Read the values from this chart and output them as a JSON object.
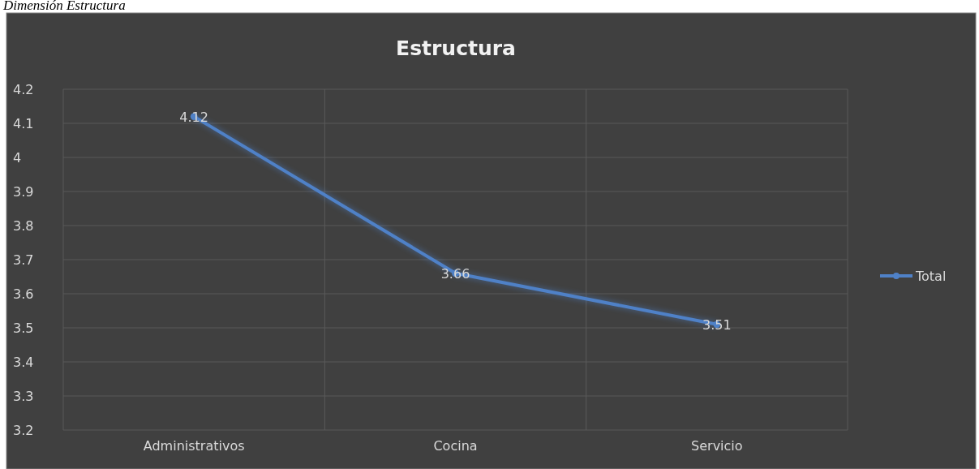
{
  "chart_data": {
    "type": "line",
    "title": "Estructura",
    "annotations": [
      "Dimensión Estructura"
    ],
    "categories": [
      "Administrativos",
      "Cocina",
      "Servicio"
    ],
    "series": [
      {
        "name": "Total",
        "color": "#4f81c7",
        "values": [
          4.12,
          3.66,
          3.51
        ]
      }
    ],
    "ylim": [
      3.2,
      4.2
    ],
    "yticks": [
      3.2,
      3.3,
      3.4,
      3.5,
      3.6,
      3.7,
      3.8,
      3.9,
      4,
      4.1,
      4.2
    ],
    "grid": true,
    "legend": "right",
    "marker": "circle",
    "data_labels": true
  }
}
